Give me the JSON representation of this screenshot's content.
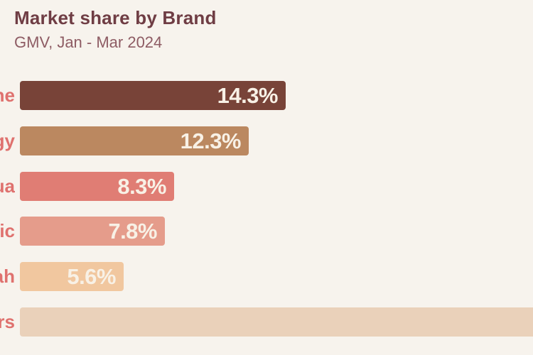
{
  "page": {
    "background_color": "#F7F3ED"
  },
  "header": {
    "title": "Market share by Brand",
    "title_color": "#6F3D44",
    "subtitle": "GMV, Jan - Mar 2024",
    "subtitle_color": "#8E5C64"
  },
  "chart_data": {
    "type": "bar",
    "orientation": "horizontal",
    "title": "Market share by Brand",
    "subtitle": "GMV, Jan - Mar 2024",
    "value_unit": "%",
    "grid": false,
    "legend": false,
    "category_label_color": "#DF716E",
    "value_label_color": "#F8F1E6",
    "bars": [
      {
        "category_visible": "ne",
        "value": 14.3,
        "value_label": "14.3%",
        "color": "#784338",
        "label_clipped_left": true,
        "bar_clipped_right": false
      },
      {
        "category_visible": "gy",
        "value": 12.3,
        "value_label": "12.3%",
        "color": "#BB8860",
        "label_clipped_left": true,
        "bar_clipped_right": false
      },
      {
        "category_visible": "ua",
        "value": 8.3,
        "value_label": "8.3%",
        "color": "#E07D74",
        "label_clipped_left": true,
        "bar_clipped_right": false
      },
      {
        "category_visible": "ic",
        "value": 7.8,
        "value_label": "7.8%",
        "color": "#E59C8B",
        "label_clipped_left": true,
        "bar_clipped_right": false
      },
      {
        "category_visible": "ah",
        "value": 5.6,
        "value_label": "5.6%",
        "color": "#F1C79F",
        "label_clipped_left": true,
        "bar_clipped_right": false
      },
      {
        "category_visible": "rs",
        "value": null,
        "value_label": "",
        "color": "#EAD1BA",
        "label_clipped_left": true,
        "bar_clipped_right": true
      }
    ]
  }
}
